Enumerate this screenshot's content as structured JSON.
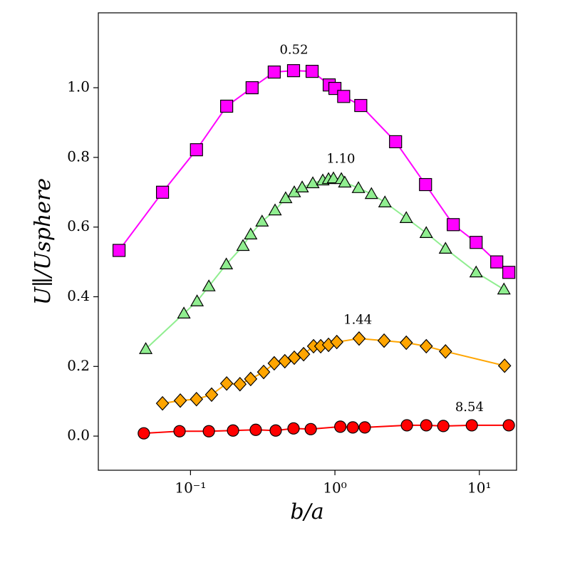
{
  "chart_data": {
    "type": "line",
    "xlabel": "b/a",
    "ylabel": "U∥/Usphere",
    "xscale": "log",
    "xlim": [
      0.023,
      18.1
    ],
    "ylim": [
      -0.098,
      1.215
    ],
    "xticks": [
      {
        "value": 0.1,
        "label": "10⁻¹"
      },
      {
        "value": 1,
        "label": "10⁰"
      },
      {
        "value": 10,
        "label": "10¹"
      }
    ],
    "yticks": [
      {
        "value": 0,
        "label": "0.0"
      },
      0.2,
      0.4,
      0.6,
      0.8,
      {
        "value": 1,
        "label": "1.0"
      }
    ],
    "series": [
      {
        "marker": "square",
        "color": "#ff00ff",
        "line_color": "#ff00ff",
        "x": [
          0.032,
          0.064,
          0.11,
          0.178,
          0.267,
          0.38,
          0.517,
          0.695,
          0.913,
          1.0,
          1.15,
          1.51,
          2.63,
          4.24,
          6.6,
          9.5,
          13.2,
          16.0
        ],
        "values": [
          0.533,
          0.7,
          0.822,
          0.947,
          1.0,
          1.045,
          1.049,
          1.047,
          1.008,
          0.998,
          0.975,
          0.949,
          0.845,
          0.722,
          0.607,
          0.556,
          0.5,
          0.47
        ]
      },
      {
        "marker": "triangle",
        "color": "#90ee90",
        "line_color": "#90ee90",
        "x": [
          0.049,
          0.09,
          0.111,
          0.134,
          0.177,
          0.231,
          0.261,
          0.313,
          0.385,
          0.456,
          0.523,
          0.593,
          0.703,
          0.824,
          0.903,
          0.977,
          1.108,
          1.17,
          1.455,
          1.79,
          2.22,
          3.12,
          4.29,
          5.83,
          9.5,
          14.8
        ],
        "values": [
          0.25,
          0.352,
          0.387,
          0.43,
          0.493,
          0.546,
          0.579,
          0.616,
          0.648,
          0.683,
          0.7,
          0.714,
          0.726,
          0.734,
          0.738,
          0.74,
          0.738,
          0.728,
          0.712,
          0.695,
          0.671,
          0.626,
          0.583,
          0.538,
          0.47,
          0.421
        ]
      },
      {
        "marker": "diamond",
        "color": "#ffa500",
        "line_color": "#ffa500",
        "x": [
          0.064,
          0.085,
          0.11,
          0.14,
          0.178,
          0.22,
          0.261,
          0.321,
          0.38,
          0.45,
          0.523,
          0.607,
          0.711,
          0.797,
          0.903,
          1.03,
          1.47,
          2.19,
          3.12,
          4.29,
          5.83,
          14.96
        ],
        "values": [
          0.094,
          0.102,
          0.106,
          0.119,
          0.151,
          0.149,
          0.164,
          0.184,
          0.209,
          0.215,
          0.225,
          0.235,
          0.258,
          0.258,
          0.262,
          0.27,
          0.28,
          0.274,
          0.268,
          0.258,
          0.243,
          0.202
        ]
      },
      {
        "marker": "circle",
        "color": "#ff0000",
        "line_color": "#ff0000",
        "x": [
          0.0475,
          0.084,
          0.134,
          0.197,
          0.283,
          0.389,
          0.517,
          0.68,
          1.09,
          1.33,
          1.61,
          3.15,
          4.29,
          5.63,
          8.87,
          16.0
        ],
        "values": [
          0.008,
          0.014,
          0.014,
          0.016,
          0.018,
          0.016,
          0.022,
          0.02,
          0.027,
          0.025,
          0.025,
          0.031,
          0.031,
          0.029,
          0.031,
          0.031
        ]
      }
    ],
    "annotations": [
      {
        "text": "0.52",
        "x": 0.52,
        "y": 1.108
      },
      {
        "text": "1.10",
        "x": 1.1,
        "y": 0.795
      },
      {
        "text": "1.44",
        "x": 1.44,
        "y": 0.333
      },
      {
        "text": "8.54",
        "x": 8.54,
        "y": 0.082
      }
    ]
  }
}
